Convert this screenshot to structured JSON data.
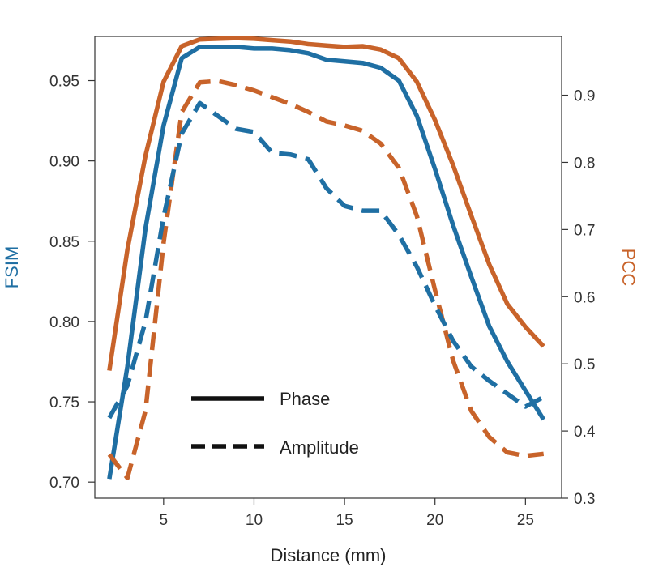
{
  "chart_data": {
    "type": "line",
    "xlabel": "Distance (mm)",
    "ylabel_left": "FSIM",
    "ylabel_right": "PCC",
    "xlim": [
      1.2,
      27.0
    ],
    "ylim_left": [
      0.69,
      0.9775
    ],
    "ylim_right": [
      0.3,
      0.9875
    ],
    "xticks": [
      5,
      10,
      15,
      20,
      25
    ],
    "yticks_left": [
      0.7,
      0.75,
      0.8,
      0.85,
      0.9,
      0.95
    ],
    "yticks_right": [
      0.3,
      0.4,
      0.5,
      0.6,
      0.7,
      0.8,
      0.9
    ],
    "yticks_left_labels": [
      "0.70",
      "0.75",
      "0.80",
      "0.85",
      "0.90",
      "0.95"
    ],
    "yticks_right_labels": [
      "0.3",
      "0.4",
      "0.5",
      "0.6",
      "0.7",
      "0.8",
      "0.9"
    ],
    "colors": {
      "fsim": "#1f6fa3",
      "pcc": "#c8632a",
      "legend": "#111111"
    },
    "legend": [
      {
        "label": "Phase",
        "style": "solid"
      },
      {
        "label": "Amplitude",
        "style": "dashed"
      }
    ],
    "x": [
      2,
      3,
      4,
      5,
      6,
      7,
      8,
      9,
      10,
      11,
      12,
      13,
      14,
      15,
      16,
      17,
      18,
      19,
      20,
      21,
      22,
      23,
      24,
      25,
      26
    ],
    "series": [
      {
        "name": "FSIM Phase",
        "axis": "left",
        "style": "solid",
        "values": [
          0.702,
          0.772,
          0.858,
          0.922,
          0.964,
          0.971,
          0.971,
          0.971,
          0.97,
          0.97,
          0.969,
          0.967,
          0.963,
          0.962,
          0.961,
          0.958,
          0.95,
          0.928,
          0.895,
          0.86,
          0.828,
          0.797,
          0.775,
          0.757,
          0.739
        ]
      },
      {
        "name": "PCC Phase",
        "axis": "right",
        "style": "solid",
        "values": [
          0.49,
          0.67,
          0.81,
          0.92,
          0.973,
          0.983,
          0.984,
          0.985,
          0.984,
          0.982,
          0.98,
          0.976,
          0.974,
          0.972,
          0.973,
          0.968,
          0.955,
          0.92,
          0.863,
          0.796,
          0.721,
          0.648,
          0.589,
          0.555,
          0.526
        ]
      },
      {
        "name": "FSIM Amplitude",
        "axis": "left",
        "style": "dashed",
        "values": [
          0.74,
          0.76,
          0.8,
          0.865,
          0.917,
          0.936,
          0.928,
          0.92,
          0.918,
          0.905,
          0.904,
          0.901,
          0.883,
          0.872,
          0.869,
          0.869,
          0.854,
          0.834,
          0.81,
          0.788,
          0.772,
          0.763,
          0.755,
          0.747,
          0.753
        ]
      },
      {
        "name": "PCC Amplitude",
        "axis": "right",
        "style": "dashed",
        "values": [
          0.365,
          0.33,
          0.43,
          0.68,
          0.875,
          0.919,
          0.921,
          0.915,
          0.907,
          0.897,
          0.887,
          0.875,
          0.861,
          0.855,
          0.847,
          0.828,
          0.792,
          0.72,
          0.61,
          0.505,
          0.43,
          0.391,
          0.368,
          0.363,
          0.366
        ]
      }
    ]
  }
}
